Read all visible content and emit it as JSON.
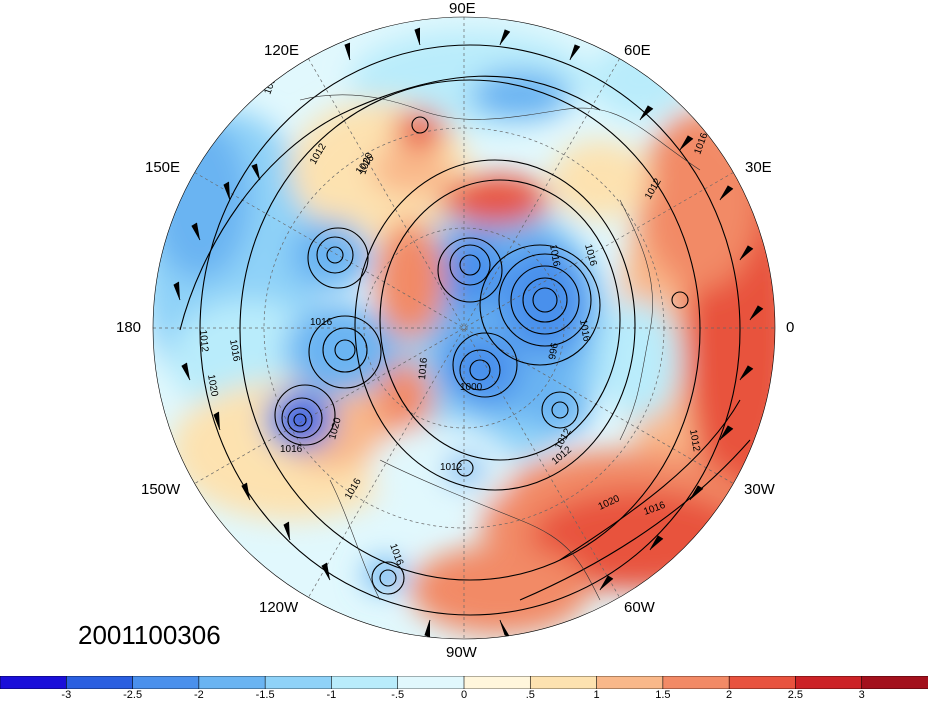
{
  "map": {
    "projection": "north polar stereographic",
    "longitude_labels": {
      "n90e": "90E",
      "n120e": "120E",
      "n60e": "60E",
      "n150e": "150E",
      "n30e": "30E",
      "n180": "180",
      "n0": "0",
      "n150w": "150W",
      "n30w": "30W",
      "n120w": "120W",
      "n60w": "60W",
      "n90w": "90W"
    },
    "timestamp": "2001100306",
    "colorbar": {
      "colors": [
        "#1a0fd9",
        "#2a5fe0",
        "#4a90ec",
        "#6ab4f2",
        "#8fd2f8",
        "#b9ecfb",
        "#e1f8fd",
        "#fff6dc",
        "#fde2b0",
        "#f9b88a",
        "#f28a66",
        "#e8523e",
        "#cc2226",
        "#a3101c"
      ],
      "labels": [
        "-3",
        "-2.5",
        "-2",
        "-1.5",
        "-1",
        "-.5",
        "0",
        ".5",
        "1",
        "1.5",
        "2",
        "2.5",
        "3"
      ]
    },
    "contour_labels": [
      "1008",
      "1012",
      "1016",
      "1020",
      "1016",
      "1012",
      "1016",
      "1016",
      "1020",
      "1016",
      "1012",
      "1016",
      "1016",
      "1020",
      "1016",
      "1012",
      "1016",
      "1012",
      "1016",
      "1012",
      "1016",
      "1020",
      "996",
      "1000",
      "1012",
      "1016"
    ]
  }
}
